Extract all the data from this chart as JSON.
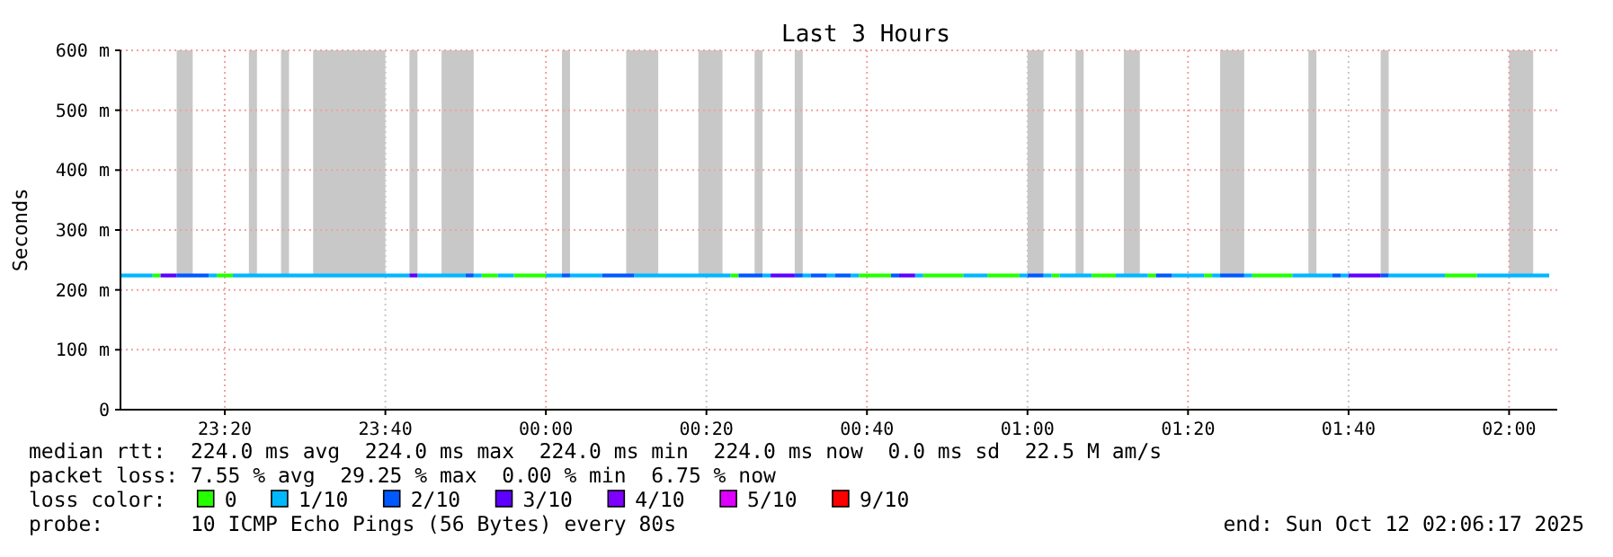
{
  "chart_data": {
    "type": "line",
    "title": "Last 3 Hours",
    "ylabel": "Seconds",
    "legend_title": "loss color:",
    "legend": "bottom",
    "grid": true,
    "line_style": "solid",
    "xlim": [
      "2025-10-11T23:07",
      "2025-10-12T02:06"
    ],
    "ylim": [
      0,
      600
    ],
    "xticks": [
      {
        "value": "2025-10-11T23:20",
        "label": "23:20"
      },
      {
        "value": "2025-10-11T23:40",
        "label": "23:40"
      },
      {
        "value": "2025-10-12T00:00",
        "label": "00:00"
      },
      {
        "value": "2025-10-12T00:20",
        "label": "00:20"
      },
      {
        "value": "2025-10-12T00:40",
        "label": "00:40"
      },
      {
        "value": "2025-10-12T01:00",
        "label": "01:00"
      },
      {
        "value": "2025-10-12T01:20",
        "label": "01:20"
      },
      {
        "value": "2025-10-12T01:40",
        "label": "01:40"
      },
      {
        "value": "2025-10-12T02:00",
        "label": "02:00"
      }
    ],
    "yticks": [
      0,
      {
        "value": 100,
        "label": "100 m"
      },
      {
        "value": 200,
        "label": "200 m"
      },
      {
        "value": 300,
        "label": "300 m"
      },
      {
        "value": 400,
        "label": "400 m"
      },
      {
        "value": 500,
        "label": "500 m"
      },
      {
        "value": 600,
        "label": "600 m"
      }
    ],
    "series": [
      {
        "name": "0",
        "color": "#26ff00",
        "x": [
          "2025-10-11T23:11",
          "2025-10-11T23:12",
          null,
          "2025-10-11T23:19",
          "2025-10-11T23:21",
          null,
          "2025-10-11T23:52",
          "2025-10-11T23:54",
          null,
          "2025-10-11T23:56",
          "2025-10-12T00:00",
          null,
          "2025-10-12T00:23",
          "2025-10-12T00:24",
          null,
          "2025-10-12T00:39",
          "2025-10-12T00:43",
          null,
          "2025-10-12T00:47",
          "2025-10-12T00:52",
          null,
          "2025-10-12T00:55",
          "2025-10-12T00:59",
          null,
          "2025-10-12T01:03",
          "2025-10-12T01:04",
          null,
          "2025-10-12T01:08",
          "2025-10-12T01:11",
          null,
          "2025-10-12T01:15",
          "2025-10-12T01:16",
          null,
          "2025-10-12T01:22",
          "2025-10-12T01:23",
          null,
          "2025-10-12T01:28",
          "2025-10-12T01:33",
          null,
          "2025-10-12T01:52",
          "2025-10-12T01:56"
        ],
        "values": [
          224,
          224,
          null,
          224,
          224,
          null,
          224,
          224,
          null,
          224,
          224,
          null,
          224,
          224,
          null,
          224,
          224,
          null,
          224,
          224,
          null,
          224,
          224,
          null,
          224,
          224,
          null,
          224,
          224,
          null,
          224,
          224,
          null,
          224,
          224,
          null,
          224,
          224,
          null,
          224,
          224
        ]
      },
      {
        "name": "1/10",
        "color": "#00b8ff",
        "x": [
          "2025-10-11T23:07",
          "2025-10-11T23:11",
          null,
          "2025-10-11T23:18",
          "2025-10-11T23:19",
          null,
          "2025-10-11T23:21",
          "2025-10-11T23:43",
          null,
          "2025-10-11T23:44",
          "2025-10-11T23:50",
          null,
          "2025-10-11T23:51",
          "2025-10-11T23:52",
          null,
          "2025-10-11T23:54",
          "2025-10-11T23:56",
          null,
          "2025-10-12T00:00",
          "2025-10-12T00:02",
          null,
          "2025-10-12T00:03",
          "2025-10-12T00:07",
          null,
          "2025-10-12T00:11",
          "2025-10-12T00:23",
          null,
          "2025-10-12T00:27",
          "2025-10-12T00:28",
          null,
          "2025-10-12T00:32",
          "2025-10-12T00:33",
          null,
          "2025-10-12T00:35",
          "2025-10-12T00:36",
          null,
          "2025-10-12T00:38",
          "2025-10-12T00:39",
          null,
          "2025-10-12T00:46",
          "2025-10-12T00:47",
          null,
          "2025-10-12T00:52",
          "2025-10-12T00:55",
          null,
          "2025-10-12T00:59",
          "2025-10-12T01:00",
          null,
          "2025-10-12T01:02",
          "2025-10-12T01:03",
          null,
          "2025-10-12T01:04",
          "2025-10-12T01:08",
          null,
          "2025-10-12T01:11",
          "2025-10-12T01:15",
          null,
          "2025-10-12T01:18",
          "2025-10-12T01:22",
          null,
          "2025-10-12T01:23",
          "2025-10-12T01:24",
          null,
          "2025-10-12T01:27",
          "2025-10-12T01:28",
          null,
          "2025-10-12T01:33",
          "2025-10-12T01:38",
          null,
          "2025-10-12T01:39",
          "2025-10-12T01:40",
          null,
          "2025-10-12T01:45",
          "2025-10-12T01:52",
          null,
          "2025-10-12T01:56",
          "2025-10-12T02:05"
        ],
        "values": [
          224,
          224,
          null,
          224,
          224,
          null,
          224,
          224,
          null,
          224,
          224,
          null,
          224,
          224,
          null,
          224,
          224,
          null,
          224,
          224,
          null,
          224,
          224,
          null,
          224,
          224,
          null,
          224,
          224,
          null,
          224,
          224,
          null,
          224,
          224,
          null,
          224,
          224,
          null,
          224,
          224,
          null,
          224,
          224,
          null,
          224,
          224,
          null,
          224,
          224,
          null,
          224,
          224,
          null,
          224,
          224,
          null,
          224,
          224,
          null,
          224,
          224,
          null,
          224,
          224,
          null,
          224,
          224,
          null,
          224,
          224,
          null,
          224,
          224,
          null,
          224,
          224
        ]
      },
      {
        "name": "2/10",
        "color": "#0059ff",
        "x": [
          "2025-10-11T23:14",
          "2025-10-11T23:18",
          null,
          "2025-10-11T23:50",
          "2025-10-11T23:51",
          null,
          "2025-10-12T00:02",
          "2025-10-12T00:03",
          null,
          "2025-10-12T00:07",
          "2025-10-12T00:11",
          null,
          "2025-10-12T00:24",
          "2025-10-12T00:27",
          null,
          "2025-10-12T00:31",
          "2025-10-12T00:32",
          null,
          "2025-10-12T00:33",
          "2025-10-12T00:35",
          null,
          "2025-10-12T00:36",
          "2025-10-12T00:38",
          null,
          "2025-10-12T00:43",
          "2025-10-12T00:44",
          null,
          "2025-10-12T01:00",
          "2025-10-12T01:02",
          null,
          "2025-10-12T01:16",
          "2025-10-12T01:18",
          null,
          "2025-10-12T01:24",
          "2025-10-12T01:27",
          null,
          "2025-10-12T01:38",
          "2025-10-12T01:39",
          null,
          "2025-10-12T01:44",
          "2025-10-12T01:45"
        ],
        "values": [
          224,
          224,
          null,
          224,
          224,
          null,
          224,
          224,
          null,
          224,
          224,
          null,
          224,
          224,
          null,
          224,
          224,
          null,
          224,
          224,
          null,
          224,
          224,
          null,
          224,
          224,
          null,
          224,
          224,
          null,
          224,
          224,
          null,
          224,
          224,
          null,
          224,
          224,
          null,
          224,
          224
        ]
      },
      {
        "name": "3/10",
        "color": "#5e00ff",
        "x": [
          "2025-10-11T23:12",
          "2025-10-11T23:14",
          null,
          "2025-10-11T23:43",
          "2025-10-11T23:44",
          null,
          "2025-10-12T00:28",
          "2025-10-12T00:31",
          null,
          "2025-10-12T00:44",
          "2025-10-12T00:46",
          null,
          "2025-10-12T01:40",
          "2025-10-12T01:44"
        ],
        "values": [
          224,
          224,
          null,
          224,
          224,
          null,
          224,
          224,
          null,
          224,
          224,
          null,
          224,
          224
        ]
      },
      {
        "name": "4/10",
        "color": "#7e00ff"
      },
      {
        "name": "5/10",
        "color": "#dd00ff"
      },
      {
        "name": "9/10",
        "color": "#ff0000"
      }
    ],
    "bands": [
      {
        "axis": "x",
        "from": "2025-10-11T23:14",
        "to": "2025-10-11T23:16",
        "color": "#c8c8c8"
      },
      {
        "axis": "x",
        "from": "2025-10-11T23:23",
        "to": "2025-10-11T23:24",
        "color": "#c8c8c8"
      },
      {
        "axis": "x",
        "from": "2025-10-11T23:27",
        "to": "2025-10-11T23:28",
        "color": "#c8c8c8"
      },
      {
        "axis": "x",
        "from": "2025-10-11T23:31",
        "to": "2025-10-11T23:40",
        "color": "#c8c8c8"
      },
      {
        "axis": "x",
        "from": "2025-10-11T23:43",
        "to": "2025-10-11T23:44",
        "color": "#c8c8c8"
      },
      {
        "axis": "x",
        "from": "2025-10-11T23:47",
        "to": "2025-10-11T23:51",
        "color": "#c8c8c8"
      },
      {
        "axis": "x",
        "from": "2025-10-12T00:02",
        "to": "2025-10-12T00:03",
        "color": "#c8c8c8"
      },
      {
        "axis": "x",
        "from": "2025-10-12T00:10",
        "to": "2025-10-12T00:14",
        "color": "#c8c8c8"
      },
      {
        "axis": "x",
        "from": "2025-10-12T00:19",
        "to": "2025-10-12T00:22",
        "color": "#c8c8c8"
      },
      {
        "axis": "x",
        "from": "2025-10-12T00:26",
        "to": "2025-10-12T00:27",
        "color": "#c8c8c8"
      },
      {
        "axis": "x",
        "from": "2025-10-12T00:31",
        "to": "2025-10-12T00:32",
        "color": "#c8c8c8"
      },
      {
        "axis": "x",
        "from": "2025-10-12T01:00",
        "to": "2025-10-12T01:02",
        "color": "#c8c8c8"
      },
      {
        "axis": "x",
        "from": "2025-10-12T01:06",
        "to": "2025-10-12T01:07",
        "color": "#c8c8c8"
      },
      {
        "axis": "x",
        "from": "2025-10-12T01:12",
        "to": "2025-10-12T01:14",
        "color": "#c8c8c8"
      },
      {
        "axis": "x",
        "from": "2025-10-12T01:24",
        "to": "2025-10-12T01:27",
        "color": "#c8c8c8"
      },
      {
        "axis": "x",
        "from": "2025-10-12T01:35",
        "to": "2025-10-12T01:36",
        "color": "#c8c8c8"
      },
      {
        "axis": "x",
        "from": "2025-10-12T01:44",
        "to": "2025-10-12T01:45",
        "color": "#c8c8c8"
      },
      {
        "axis": "x",
        "from": "2025-10-12T02:00",
        "to": "2025-10-12T02:03",
        "color": "#c8c8c8"
      }
    ],
    "annotations": [
      "median rtt:  224.0 ms avg  224.0 ms max  224.0 ms min  224.0 ms now  0.0 ms sd  22.5 M am/s",
      "packet loss: 7.55 % avg  29.25 % max  0.00 % min  6.75 % now",
      "probe:       10 ICMP Echo Pings (56 Bytes) every 80s",
      "end: Sun Oct 12 02:06:17 2025"
    ]
  }
}
